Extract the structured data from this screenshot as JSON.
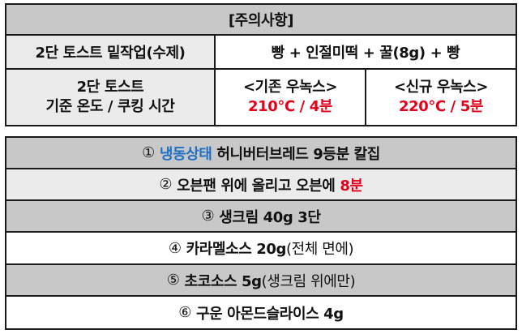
{
  "header": {
    "title": "[주의사항]"
  },
  "rows": {
    "toast_label": "2단 토스트 밑작업(수제)",
    "toast_recipe": "빵 + 인절미떡 + 꿀(8g) + 빵",
    "temp_label_line1": "2단 토스트",
    "temp_label_line2": "기준 온도 / 쿠킹 시간",
    "old_oven_label": "<기존 우녹스>",
    "old_oven_value": "210℃ / 4분",
    "new_oven_label": "<신규 우녹스>",
    "new_oven_value": "220℃ / 5분"
  },
  "steps": [
    {
      "num": "①",
      "highlight": "냉동상태",
      "text": " 허니버터브레드 9등분 칼집"
    },
    {
      "num": "②",
      "text": "오븐팬 위에 올리고 오븐에 ",
      "highlight": "8분"
    },
    {
      "num": "③",
      "text": "생크림 40g 3단"
    },
    {
      "num": "④",
      "text": "카라멜소스 20g",
      "note": "(전체 면에)"
    },
    {
      "num": "⑤",
      "text": "초코소스 5g",
      "note": "(생크림 위에만)"
    },
    {
      "num": "⑥",
      "text": "구운 아몬드슬라이스 4g"
    }
  ],
  "colors": {
    "header_gray": "#c8c8c8",
    "light_gray": "#ebebeb",
    "red": "#e3001b",
    "blue": "#1f6fc4"
  }
}
